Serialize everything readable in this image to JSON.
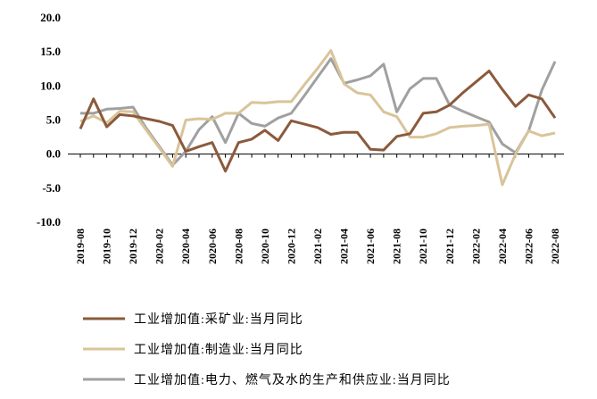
{
  "chart_data": {
    "type": "line",
    "categories": [
      "2019-08",
      null,
      "2019-10",
      null,
      "2019-12",
      null,
      "2020-02",
      null,
      "2020-04",
      null,
      "2020-06",
      null,
      "2020-08",
      null,
      "2020-10",
      null,
      "2020-12",
      null,
      "2021-02",
      null,
      "2021-04",
      null,
      "2021-06",
      null,
      "2021-08",
      null,
      "2021-10",
      null,
      "2021-12",
      null,
      "2022-02",
      null,
      "2022-04",
      null,
      "2022-06",
      null,
      "2022-08"
    ],
    "series": [
      {
        "name": "工业增加值:采矿业:当月同比",
        "color": "#8b5a3c",
        "values": [
          3.7,
          8.1,
          4.0,
          5.8,
          5.6,
          5.2,
          4.8,
          4.2,
          0.4,
          1.1,
          1.7,
          -2.5,
          1.7,
          2.2,
          3.5,
          2.0,
          4.9,
          4.4,
          3.9,
          2.9,
          3.2,
          3.2,
          0.7,
          0.6,
          2.6,
          3.0,
          6.0,
          6.2,
          7.2,
          9.0,
          10.6,
          12.2,
          9.5,
          7.0,
          8.7,
          8.1,
          5.3
        ]
      },
      {
        "name": "工业增加值:制造业:当月同比",
        "color": "#d9c49a",
        "values": [
          4.8,
          5.6,
          4.6,
          6.3,
          6.2,
          3.5,
          0.9,
          -1.8,
          5.0,
          5.2,
          5.1,
          6.0,
          6.0,
          7.6,
          7.5,
          7.7,
          7.7,
          10.2,
          12.6,
          15.2,
          10.3,
          9.0,
          8.7,
          6.2,
          5.5,
          2.5,
          2.5,
          3.0,
          3.9,
          4.1,
          4.2,
          4.4,
          -4.5,
          0.0,
          3.4,
          2.7,
          3.1
        ]
      },
      {
        "name": "工业增加值:电力、燃气及水的生产和供应业:当月同比",
        "color": "#a0a0a0",
        "values": [
          6.0,
          6.0,
          6.6,
          6.7,
          6.9,
          3.8,
          1.1,
          -1.6,
          0.4,
          3.6,
          5.5,
          1.7,
          6.0,
          4.5,
          4.1,
          5.3,
          6.0,
          8.6,
          11.3,
          14.0,
          10.4,
          10.9,
          11.5,
          13.2,
          6.2,
          9.6,
          11.1,
          11.1,
          7.2,
          6.3,
          5.5,
          4.7,
          1.5,
          0.2,
          3.4,
          9.4,
          13.6
        ]
      }
    ],
    "ylim": [
      -10,
      20
    ],
    "yticks": [
      {
        "value": -10,
        "label": "-10.0"
      },
      {
        "value": -5,
        "label": "-5.0"
      },
      {
        "value": 0,
        "label": "0.0"
      },
      {
        "value": 5,
        "label": "5.0"
      },
      {
        "value": 10,
        "label": "10.0"
      },
      {
        "value": 15,
        "label": "15.0"
      },
      {
        "value": 20,
        "label": "20.0"
      }
    ],
    "grid": false,
    "legend": "bottom"
  }
}
